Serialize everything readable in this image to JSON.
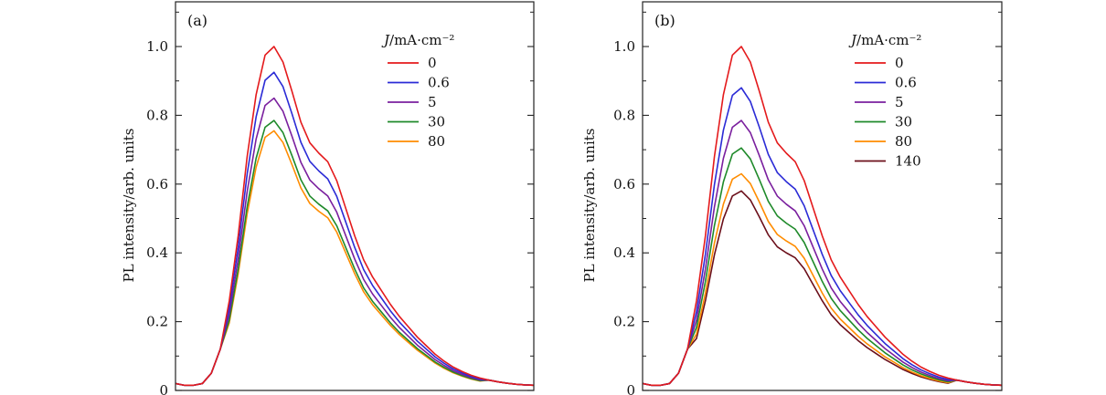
{
  "chart_data": [
    {
      "type": "line",
      "panel_label": "(a)",
      "ylabel": "PL intensity/arb. units",
      "xlabel": "",
      "ylim": [
        0,
        1.13
      ],
      "yticks": [
        0,
        0.2,
        0.4,
        0.6,
        0.8,
        1.0
      ],
      "ytick_labels": [
        "0",
        "0.2",
        "0.4",
        "0.6",
        "0.8",
        "1.0"
      ],
      "legend_title": "J/mA·cm⁻²",
      "legend_placement": "top-right",
      "x": [
        0,
        0.025,
        0.05,
        0.075,
        0.1,
        0.125,
        0.15,
        0.175,
        0.2,
        0.225,
        0.25,
        0.275,
        0.3,
        0.325,
        0.35,
        0.375,
        0.4,
        0.425,
        0.45,
        0.475,
        0.5,
        0.525,
        0.55,
        0.575,
        0.6,
        0.625,
        0.65,
        0.675,
        0.7,
        0.725,
        0.75,
        0.775,
        0.8,
        0.825,
        0.85,
        0.875,
        0.9,
        0.925,
        0.95,
        0.975,
        1.0
      ],
      "shape": [
        0.02,
        0.015,
        0.015,
        0.02,
        0.05,
        0.12,
        0.26,
        0.45,
        0.68,
        0.86,
        0.975,
        1.0,
        0.955,
        0.87,
        0.78,
        0.72,
        0.69,
        0.665,
        0.61,
        0.53,
        0.45,
        0.38,
        0.33,
        0.29,
        0.25,
        0.215,
        0.185,
        0.155,
        0.13,
        0.105,
        0.085,
        0.068,
        0.055,
        0.044,
        0.036,
        0.03,
        0.025,
        0.021,
        0.018,
        0.016,
        0.015
      ],
      "series": [
        {
          "name": "0",
          "peak": 1.0,
          "color": "#e41a1c"
        },
        {
          "name": "0.6",
          "peak": 0.925,
          "color": "#2b2bd6"
        },
        {
          "name": "5",
          "peak": 0.85,
          "color": "#7a1f9e"
        },
        {
          "name": "30",
          "peak": 0.785,
          "color": "#1f8a2a"
        },
        {
          "name": "80",
          "peak": 0.755,
          "color": "#ff8c00"
        }
      ]
    },
    {
      "type": "line",
      "panel_label": "(b)",
      "ylabel": "PL intensity/arb. units",
      "xlabel": "",
      "ylim": [
        0,
        1.13
      ],
      "yticks": [
        0,
        0.2,
        0.4,
        0.6,
        0.8,
        1.0
      ],
      "ytick_labels": [
        "0",
        "0.2",
        "0.4",
        "0.6",
        "0.8",
        "1.0"
      ],
      "legend_title": "J/mA·cm⁻²",
      "legend_placement": "top-right",
      "x": [
        0,
        0.025,
        0.05,
        0.075,
        0.1,
        0.125,
        0.15,
        0.175,
        0.2,
        0.225,
        0.25,
        0.275,
        0.3,
        0.325,
        0.35,
        0.375,
        0.4,
        0.425,
        0.45,
        0.475,
        0.5,
        0.525,
        0.55,
        0.575,
        0.6,
        0.625,
        0.65,
        0.675,
        0.7,
        0.725,
        0.75,
        0.775,
        0.8,
        0.825,
        0.85,
        0.875,
        0.9,
        0.925,
        0.95,
        0.975,
        1.0
      ],
      "shape": [
        0.02,
        0.015,
        0.015,
        0.02,
        0.05,
        0.12,
        0.26,
        0.45,
        0.68,
        0.86,
        0.975,
        1.0,
        0.955,
        0.87,
        0.78,
        0.72,
        0.69,
        0.665,
        0.61,
        0.53,
        0.45,
        0.38,
        0.33,
        0.29,
        0.25,
        0.215,
        0.185,
        0.155,
        0.13,
        0.105,
        0.085,
        0.068,
        0.055,
        0.044,
        0.036,
        0.03,
        0.025,
        0.021,
        0.018,
        0.016,
        0.015
      ],
      "series": [
        {
          "name": "0",
          "peak": 1.0,
          "color": "#e41a1c"
        },
        {
          "name": "0.6",
          "peak": 0.88,
          "color": "#2b2bd6"
        },
        {
          "name": "5",
          "peak": 0.785,
          "color": "#7a1f9e"
        },
        {
          "name": "30",
          "peak": 0.705,
          "color": "#1f8a2a"
        },
        {
          "name": "80",
          "peak": 0.63,
          "color": "#ff8c00"
        },
        {
          "name": "140",
          "peak": 0.58,
          "color": "#6b0f1a"
        }
      ]
    }
  ]
}
